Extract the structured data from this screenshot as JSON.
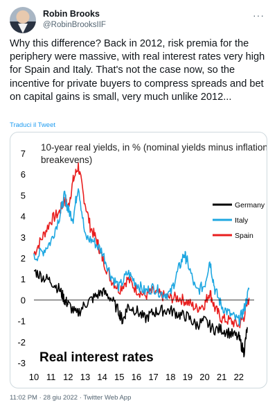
{
  "author": {
    "display_name": "Robin Brooks",
    "handle": "@RobinBrooksIIF"
  },
  "tweet": {
    "text": "Why this difference? Back in 2012, risk premia for the periphery were massive, with real interest rates very high for Spain and Italy. That's not the case now, so the incentive for private buyers to compress spreads and bet on capital gains is small, very much unlike 2012...",
    "translate_label": "Traduci il Tweet",
    "time": "11:02 PM",
    "date": "28 giu 2022",
    "source": "Twitter Web App",
    "separator": "·"
  },
  "icons": {
    "more": "more-horizontal-icon"
  },
  "chart_data": {
    "type": "line",
    "title": "10-year real yields, in % (nominal yields minus inflation breakevens)",
    "annotation": "Real interest rates",
    "x_ticks": [
      "10",
      "11",
      "12",
      "13",
      "14",
      "15",
      "16",
      "17",
      "18",
      "19",
      "20",
      "21",
      "22"
    ],
    "xlim": [
      2010.0,
      2022.9
    ],
    "y_ticks": [
      7,
      6,
      5,
      4,
      3,
      2,
      1,
      0,
      -1,
      -2,
      -3
    ],
    "ylim": [
      -3,
      7
    ],
    "legend_position": "right",
    "series": [
      {
        "name": "Germany",
        "color": "#000000",
        "x": [
          2010.0,
          2010.5,
          2011.0,
          2011.5,
          2011.8,
          2012.0,
          2012.5,
          2013.0,
          2013.5,
          2014.0,
          2014.5,
          2015.0,
          2015.2,
          2015.5,
          2016.0,
          2016.5,
          2017.0,
          2017.5,
          2018.0,
          2018.5,
          2019.0,
          2019.5,
          2020.0,
          2020.5,
          2021.0,
          2021.5,
          2022.0,
          2022.3,
          2022.5
        ],
        "y": [
          1.4,
          1.1,
          0.9,
          0.5,
          0.0,
          -0.2,
          -0.7,
          -0.2,
          0.1,
          0.4,
          0.1,
          -0.6,
          -1.0,
          -0.3,
          -0.5,
          -0.9,
          -0.6,
          -0.5,
          -0.5,
          -0.7,
          -0.8,
          -1.2,
          -1.0,
          -1.4,
          -1.4,
          -1.6,
          -1.8,
          -2.5,
          -1.3
        ]
      },
      {
        "name": "Italy",
        "color": "#1ea7e1",
        "x": [
          2010.0,
          2010.5,
          2011.0,
          2011.5,
          2011.8,
          2012.0,
          2012.3,
          2012.6,
          2013.0,
          2013.5,
          2014.0,
          2014.5,
          2015.0,
          2015.5,
          2016.0,
          2016.5,
          2017.0,
          2017.5,
          2018.0,
          2018.4,
          2018.8,
          2019.0,
          2019.5,
          2020.0,
          2020.3,
          2020.6,
          2021.0,
          2021.5,
          2022.0,
          2022.3,
          2022.6
        ],
        "y": [
          2.0,
          2.3,
          2.8,
          4.0,
          5.0,
          4.3,
          3.9,
          5.5,
          3.0,
          2.8,
          2.3,
          1.2,
          0.6,
          1.3,
          0.8,
          0.4,
          0.6,
          0.3,
          0.3,
          1.3,
          2.2,
          1.8,
          0.4,
          0.7,
          1.9,
          0.5,
          -0.3,
          -0.7,
          -1.0,
          -0.5,
          0.5
        ]
      },
      {
        "name": "Spain",
        "color": "#e81e1e",
        "x": [
          2010.0,
          2010.5,
          2011.0,
          2011.5,
          2011.8,
          2012.0,
          2012.3,
          2012.6,
          2012.9,
          2013.3,
          2013.7,
          2014.0,
          2014.5,
          2015.0,
          2015.5,
          2016.0,
          2016.5,
          2017.0,
          2017.5,
          2018.0,
          2018.5,
          2019.0,
          2019.5,
          2020.0,
          2020.3,
          2020.6,
          2021.0,
          2021.5,
          2022.0,
          2022.3,
          2022.6
        ],
        "y": [
          2.2,
          3.0,
          3.8,
          4.2,
          4.8,
          4.4,
          5.7,
          6.4,
          5.0,
          3.5,
          2.8,
          2.0,
          1.0,
          0.5,
          1.0,
          0.5,
          0.2,
          0.4,
          0.2,
          0.1,
          0.1,
          -0.1,
          -0.4,
          -0.2,
          0.4,
          -0.4,
          -0.9,
          -1.0,
          -1.2,
          -0.8,
          0.1
        ]
      }
    ]
  }
}
